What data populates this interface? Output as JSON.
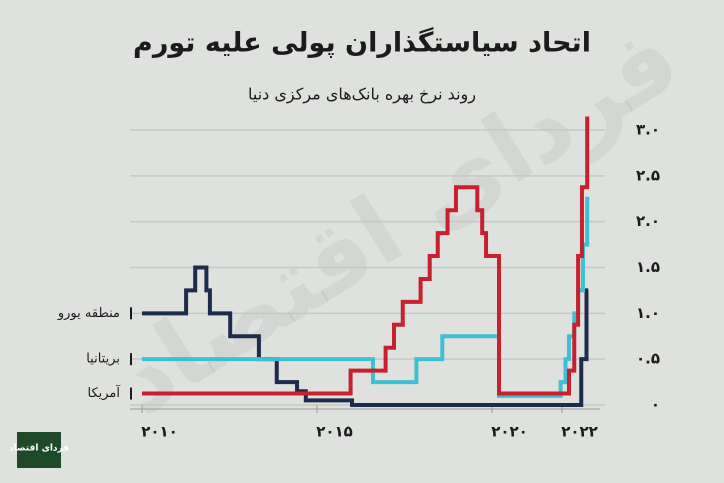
{
  "chart_data": {
    "type": "step-line",
    "title": "اتحاد سیاستگذاران پولی علیه تورم",
    "subtitle": "روند نرخ بهره بانک‌های مرکزی دنیا",
    "xlim": [
      2009.6,
      2023.1
    ],
    "ylim": [
      0,
      3.0
    ],
    "xticks": [
      {
        "value": 2010,
        "label": "۲۰۱۰"
      },
      {
        "value": 2015,
        "label": "۲۰۱۵"
      },
      {
        "value": 2020,
        "label": "۲۰۲۰"
      },
      {
        "value": 2022,
        "label": "۲۰۲۲"
      }
    ],
    "yticks": [
      {
        "value": 0,
        "label": "۰"
      },
      {
        "value": 0.5,
        "label": "۰.۵"
      },
      {
        "value": 1.0,
        "label": "۱.۰"
      },
      {
        "value": 1.5,
        "label": "۱.۵"
      },
      {
        "value": 2.0,
        "label": "۲.۰"
      },
      {
        "value": 2.5,
        "label": "۲.۵"
      },
      {
        "value": 3.0,
        "label": "۳.۰"
      }
    ],
    "grid": true,
    "series": [
      {
        "name": "منطقه یورو",
        "color": "#1d2b4c",
        "x": [
          2010,
          2011.26,
          2011.52,
          2011.84,
          2011.94,
          2012.52,
          2013.34,
          2013.85,
          2014.43,
          2014.68,
          2016.0,
          2022.55,
          2022.7,
          2022.75
        ],
        "values": [
          1.0,
          1.25,
          1.5,
          1.25,
          1.0,
          0.75,
          0.5,
          0.25,
          0.15,
          0.05,
          0,
          0.5,
          1.25,
          1.25
        ]
      },
      {
        "name": "بریتانیا",
        "color": "#3ec0d2",
        "x": [
          2010,
          2016.6,
          2017.84,
          2018.58,
          2020.2,
          2021.96,
          2022.1,
          2022.2,
          2022.35,
          2022.46,
          2022.6,
          2022.72,
          2022.78
        ],
        "values": [
          0.5,
          0.25,
          0.5,
          0.75,
          0.1,
          0.25,
          0.5,
          0.75,
          1.0,
          1.25,
          1.75,
          2.25,
          2.25
        ]
      },
      {
        "name": "آمریکا",
        "color": "#c8202f",
        "x": [
          2010,
          2015.96,
          2016.96,
          2017.2,
          2017.45,
          2017.96,
          2018.22,
          2018.45,
          2018.73,
          2018.97,
          2019.58,
          2019.72,
          2019.83,
          2020.2,
          2022.2,
          2022.35,
          2022.46,
          2022.57,
          2022.72,
          2022.78
        ],
        "values": [
          0.125,
          0.375,
          0.625,
          0.875,
          1.125,
          1.375,
          1.625,
          1.875,
          2.125,
          2.375,
          2.125,
          1.875,
          1.625,
          0.125,
          0.375,
          0.875,
          1.625,
          2.375,
          3.125,
          3.125
        ]
      }
    ]
  },
  "watermark": "فردای اقتصاد",
  "logo": "فردای اقتصاد"
}
